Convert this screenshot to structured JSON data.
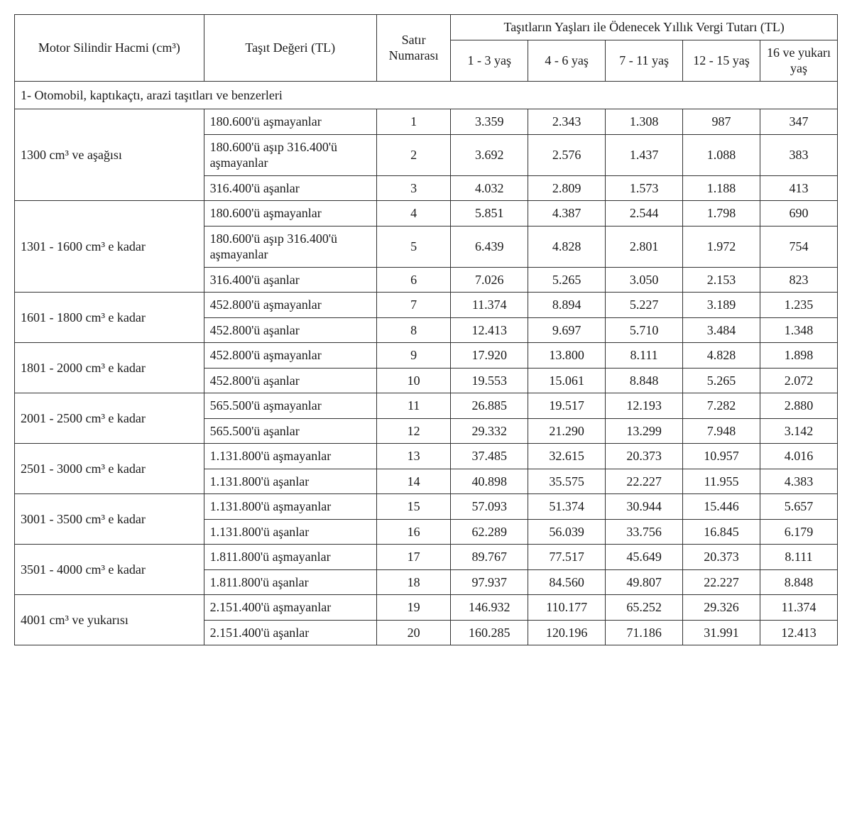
{
  "header": {
    "col_engine": "Motor Silindir Hacmi (cm³)",
    "col_value": "Taşıt Değeri (TL)",
    "col_rowno": "Satır Numarası",
    "col_ages_top": "Taşıtların Yaşları ile Ödenecek Yıllık Vergi Tutarı (TL)",
    "age1": "1 - 3 yaş",
    "age2": "4 - 6 yaş",
    "age3": "7 - 11 yaş",
    "age4": "12 - 15 yaş",
    "age5": "16 ve yukarı yaş"
  },
  "section1_title": "1- Otomobil, kaptıkaçtı, arazi taşıtları ve benzerleri",
  "groups": [
    {
      "engine": "1300 cm³ ve aşağısı",
      "rows": [
        {
          "value": "180.600'ü aşmayanlar",
          "no": "1",
          "a1": "3.359",
          "a2": "2.343",
          "a3": "1.308",
          "a4": "987",
          "a5": "347"
        },
        {
          "value": "180.600'ü aşıp 316.400'ü aşmayanlar",
          "no": "2",
          "a1": "3.692",
          "a2": "2.576",
          "a3": "1.437",
          "a4": "1.088",
          "a5": "383"
        },
        {
          "value": "316.400'ü aşanlar",
          "no": "3",
          "a1": "4.032",
          "a2": "2.809",
          "a3": "1.573",
          "a4": "1.188",
          "a5": "413"
        }
      ]
    },
    {
      "engine": "1301 - 1600 cm³ e kadar",
      "rows": [
        {
          "value": "180.600'ü aşmayanlar",
          "no": "4",
          "a1": "5.851",
          "a2": "4.387",
          "a3": "2.544",
          "a4": "1.798",
          "a5": "690"
        },
        {
          "value": "180.600'ü aşıp 316.400'ü aşmayanlar",
          "no": "5",
          "a1": "6.439",
          "a2": "4.828",
          "a3": "2.801",
          "a4": "1.972",
          "a5": "754"
        },
        {
          "value": "316.400'ü aşanlar",
          "no": "6",
          "a1": "7.026",
          "a2": "5.265",
          "a3": "3.050",
          "a4": "2.153",
          "a5": "823"
        }
      ]
    },
    {
      "engine": "1601 - 1800 cm³ e kadar",
      "rows": [
        {
          "value": "452.800'ü aşmayanlar",
          "no": "7",
          "a1": "11.374",
          "a2": "8.894",
          "a3": "5.227",
          "a4": "3.189",
          "a5": "1.235"
        },
        {
          "value": "452.800'ü aşanlar",
          "no": "8",
          "a1": "12.413",
          "a2": "9.697",
          "a3": "5.710",
          "a4": "3.484",
          "a5": "1.348"
        }
      ]
    },
    {
      "engine": "1801 - 2000 cm³ e kadar",
      "rows": [
        {
          "value": "452.800'ü aşmayanlar",
          "no": "9",
          "a1": "17.920",
          "a2": "13.800",
          "a3": "8.111",
          "a4": "4.828",
          "a5": "1.898"
        },
        {
          "value": "452.800'ü aşanlar",
          "no": "10",
          "a1": "19.553",
          "a2": "15.061",
          "a3": "8.848",
          "a4": "5.265",
          "a5": "2.072"
        }
      ]
    },
    {
      "engine": "2001 - 2500 cm³ e kadar",
      "rows": [
        {
          "value": "565.500'ü aşmayanlar",
          "no": "11",
          "a1": "26.885",
          "a2": "19.517",
          "a3": "12.193",
          "a4": "7.282",
          "a5": "2.880"
        },
        {
          "value": "565.500'ü aşanlar",
          "no": "12",
          "a1": "29.332",
          "a2": "21.290",
          "a3": "13.299",
          "a4": "7.948",
          "a5": "3.142"
        }
      ]
    },
    {
      "engine": "2501 - 3000 cm³ e kadar",
      "rows": [
        {
          "value": "1.131.800'ü aşmayanlar",
          "no": "13",
          "a1": "37.485",
          "a2": "32.615",
          "a3": "20.373",
          "a4": "10.957",
          "a5": "4.016"
        },
        {
          "value": "1.131.800'ü aşanlar",
          "no": "14",
          "a1": "40.898",
          "a2": "35.575",
          "a3": "22.227",
          "a4": "11.955",
          "a5": "4.383"
        }
      ]
    },
    {
      "engine": "3001 - 3500 cm³ e kadar",
      "rows": [
        {
          "value": "1.131.800'ü aşmayanlar",
          "no": "15",
          "a1": "57.093",
          "a2": "51.374",
          "a3": "30.944",
          "a4": "15.446",
          "a5": "5.657"
        },
        {
          "value": "1.131.800'ü aşanlar",
          "no": "16",
          "a1": "62.289",
          "a2": "56.039",
          "a3": "33.756",
          "a4": "16.845",
          "a5": "6.179"
        }
      ]
    },
    {
      "engine": "3501 - 4000 cm³ e kadar",
      "rows": [
        {
          "value": "1.811.800'ü aşmayanlar",
          "no": "17",
          "a1": "89.767",
          "a2": "77.517",
          "a3": "45.649",
          "a4": "20.373",
          "a5": "8.111"
        },
        {
          "value": "1.811.800'ü aşanlar",
          "no": "18",
          "a1": "97.937",
          "a2": "84.560",
          "a3": "49.807",
          "a4": "22.227",
          "a5": "8.848"
        }
      ]
    },
    {
      "engine": "4001 cm³ ve yukarısı",
      "rows": [
        {
          "value": "2.151.400'ü aşmayanlar",
          "no": "19",
          "a1": "146.932",
          "a2": "110.177",
          "a3": "65.252",
          "a4": "29.326",
          "a5": "11.374"
        },
        {
          "value": "2.151.400'ü aşanlar",
          "no": "20",
          "a1": "160.285",
          "a2": "120.196",
          "a3": "71.186",
          "a4": "31.991",
          "a5": "12.413"
        }
      ]
    }
  ],
  "style": {
    "font_family": "Times New Roman",
    "font_size_pt": 13,
    "border_color": "#333333",
    "background_color": "#ffffff",
    "text_color": "#1a1a1a"
  }
}
